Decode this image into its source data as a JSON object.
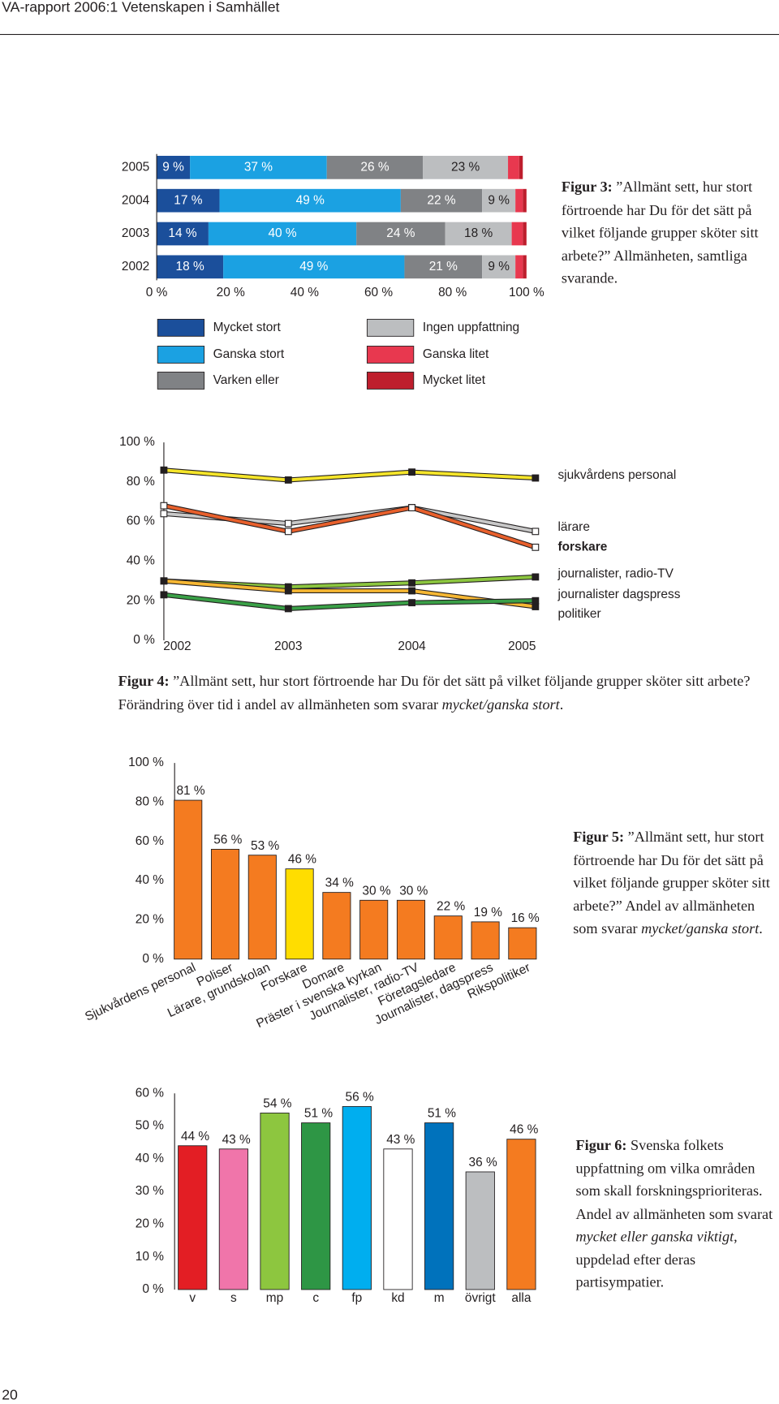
{
  "header": {
    "title": "VA-rapport 2006:1 Vetenskapen i Samhället"
  },
  "page_number": "20",
  "chart_data": [
    {
      "type": "bar",
      "horizontal": true,
      "stacked": true,
      "caption": [
        "Figur 3:",
        "”Allmänt sett, hur stort förtroende har Du för det sätt på vilket följande grupper sköter sitt arbete?” Allmänheten, samtliga svarande."
      ],
      "categories": [
        "2005",
        "2004",
        "2003",
        "2002"
      ],
      "series": [
        {
          "name": "Mycket stort",
          "color": "#1b4f9b",
          "values": [
            9,
            17,
            14,
            18
          ],
          "value_labels": [
            "9 %",
            "17 %",
            "14 %",
            "18 %"
          ]
        },
        {
          "name": "Ganska stort",
          "color": "#1ba1e2",
          "values": [
            37,
            49,
            40,
            49
          ],
          "value_labels": [
            "37 %",
            "49 %",
            "40 %",
            "49 %"
          ]
        },
        {
          "name": "Varken eller",
          "color": "#808285",
          "values": [
            26,
            22,
            24,
            21
          ],
          "value_labels": [
            "26 %",
            "22 %",
            "24 %",
            "21 %"
          ]
        },
        {
          "name": "Ingen uppfattning",
          "color": "#bcbec0",
          "values": [
            23,
            9,
            18,
            9
          ],
          "value_labels": [
            "23 %",
            "9 %",
            "18 %",
            "9 %"
          ]
        },
        {
          "name": "Ganska litet",
          "color": "#e8384f",
          "values": [
            3,
            2,
            3,
            2
          ]
        },
        {
          "name": "Mycket litet",
          "color": "#be1e2d",
          "values": [
            1,
            1,
            1,
            1
          ]
        }
      ],
      "xlim": [
        0,
        100
      ],
      "xticks": [
        {
          "value": 0,
          "label": "0 %"
        },
        {
          "value": 20,
          "label": "20 %"
        },
        {
          "value": 40,
          "label": "40 %"
        },
        {
          "value": 60,
          "label": "60 %"
        },
        {
          "value": 80,
          "label": "80 %"
        },
        {
          "value": 100,
          "label": "100 %"
        }
      ],
      "legend": "bottom"
    },
    {
      "type": "line",
      "caption": [
        "Figur 4:",
        "”Allmänt sett, hur stort förtroende har Du för det sätt på vilket följande grupper sköter sitt arbete? Förändring över tid i andel av allmänheten som svarar",
        "mycket/ganska stort",
        "."
      ],
      "categories": [
        "2002",
        "2003",
        "2004",
        "2005"
      ],
      "series": [
        {
          "name": "sjukvårdens personal",
          "color": "#f5e52a",
          "marker": "#231f20",
          "values": [
            86,
            81,
            85,
            82
          ]
        },
        {
          "name": "lärare",
          "color": "#c8c8c8",
          "marker": "#ffffff",
          "values": [
            64,
            59,
            67,
            55
          ]
        },
        {
          "name": "forskare",
          "color": "#e8602c",
          "marker": "#ffffff",
          "bold": true,
          "values": [
            68,
            55,
            67,
            47
          ]
        },
        {
          "name": "journalister, radio-TV",
          "color": "#8cc63f",
          "marker": "#231f20",
          "values": [
            30,
            27,
            29,
            32
          ]
        },
        {
          "name": "journalister dagspress",
          "color": "#f6b733",
          "marker": "#231f20",
          "values": [
            30,
            25,
            25,
            17
          ]
        },
        {
          "name": "politiker",
          "color": "#3aa047",
          "marker": "#231f20",
          "values": [
            23,
            16,
            19,
            20
          ]
        }
      ],
      "ylim": [
        0,
        100
      ],
      "yticks": [
        {
          "value": 0,
          "label": "0 %"
        },
        {
          "value": 20,
          "label": "20 %"
        },
        {
          "value": 40,
          "label": "40 %"
        },
        {
          "value": 60,
          "label": "60 %"
        },
        {
          "value": 80,
          "label": "80 %"
        },
        {
          "value": 100,
          "label": "100 %"
        }
      ]
    },
    {
      "type": "bar",
      "caption": [
        "Figur 5:",
        "”Allmänt sett, hur stort förtroende har Du för det sätt på vilket följande grupper sköter sitt arbete?” Andel av allmänheten som svarar",
        "mycket/ganska stort",
        "."
      ],
      "categories": [
        "Sjukvårdens personal",
        "Poliser",
        "Lärare, grundskolan",
        "Forskare",
        "Domare",
        "Präster i svenska kyrkan",
        "Journalister, radio-TV",
        "Företagsledare",
        "Journalister, dagspress",
        "Rikspolitiker"
      ],
      "values": [
        81,
        56,
        53,
        46,
        34,
        30,
        30,
        22,
        19,
        16
      ],
      "value_labels": [
        "81 %",
        "56 %",
        "53 %",
        "46 %",
        "34 %",
        "30 %",
        "30 %",
        "22 %",
        "19 %",
        "16 %"
      ],
      "colors": [
        "#f47b20",
        "#f47b20",
        "#f47b20",
        "#ffdd00",
        "#f47b20",
        "#f47b20",
        "#f47b20",
        "#f47b20",
        "#f47b20",
        "#f47b20"
      ],
      "ylim": [
        0,
        100
      ],
      "yticks": [
        {
          "value": 0,
          "label": "0 %"
        },
        {
          "value": 20,
          "label": "20 %"
        },
        {
          "value": 40,
          "label": "40 %"
        },
        {
          "value": 60,
          "label": "60 %"
        },
        {
          "value": 80,
          "label": "80 %"
        },
        {
          "value": 100,
          "label": "100 %"
        }
      ]
    },
    {
      "type": "bar",
      "caption": [
        "Figur 6:",
        "Svenska folkets uppfattning om vilka områden som skall forskningsprioriteras. Andel av allmänheten som svarat",
        "mycket eller ganska viktigt",
        ", uppdelad efter deras partisympatier."
      ],
      "categories": [
        "v",
        "s",
        "mp",
        "c",
        "fp",
        "kd",
        "m",
        "övrigt",
        "alla"
      ],
      "values": [
        44,
        43,
        54,
        51,
        56,
        43,
        51,
        36,
        46
      ],
      "value_labels": [
        "44 %",
        "43 %",
        "54 %",
        "51 %",
        "56 %",
        "43 %",
        "51 %",
        "36 %",
        "46 %"
      ],
      "colors": [
        "#e31e24",
        "#f075aa",
        "#8dc63f",
        "#2e9645",
        "#00aeef",
        "#ffffff",
        "#0072bc",
        "#bcbec0",
        "#f47b20"
      ],
      "ylim": [
        0,
        60
      ],
      "yticks": [
        {
          "value": 0,
          "label": "0 %"
        },
        {
          "value": 10,
          "label": "10 %"
        },
        {
          "value": 20,
          "label": "20 %"
        },
        {
          "value": 30,
          "label": "30 %"
        },
        {
          "value": 40,
          "label": "40 %"
        },
        {
          "value": 50,
          "label": "50 %"
        },
        {
          "value": 60,
          "label": "60 %"
        }
      ]
    }
  ]
}
